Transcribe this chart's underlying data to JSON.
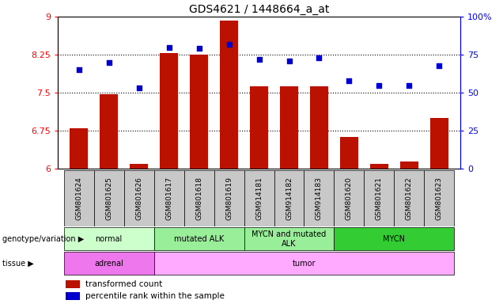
{
  "title": "GDS4621 / 1448664_a_at",
  "samples": [
    "GSM801624",
    "GSM801625",
    "GSM801626",
    "GSM801617",
    "GSM801618",
    "GSM801619",
    "GSM914181",
    "GSM914182",
    "GSM914183",
    "GSM801620",
    "GSM801621",
    "GSM801622",
    "GSM801623"
  ],
  "bar_values": [
    6.8,
    7.47,
    6.1,
    8.28,
    8.25,
    8.93,
    7.63,
    7.62,
    7.63,
    6.62,
    6.1,
    6.15,
    7.0
  ],
  "dot_values": [
    65,
    70,
    53,
    80,
    79,
    82,
    72,
    71,
    73,
    58,
    55,
    55,
    68
  ],
  "bar_color": "#bb1100",
  "dot_color": "#0000cc",
  "ylim_left": [
    6,
    9
  ],
  "ylim_right": [
    0,
    100
  ],
  "yticks_left": [
    6,
    6.75,
    7.5,
    8.25,
    9
  ],
  "ytick_labels_left": [
    "6",
    "6.75",
    "7.5",
    "8.25",
    "9"
  ],
  "yticks_right": [
    0,
    25,
    50,
    75,
    100
  ],
  "ytick_labels_right": [
    "0",
    "25",
    "50",
    "75",
    "100%"
  ],
  "hlines": [
    6.75,
    7.5,
    8.25
  ],
  "genotype_groups": [
    {
      "label": "normal",
      "start": 0,
      "end": 3,
      "color": "#ccffcc"
    },
    {
      "label": "mutated ALK",
      "start": 3,
      "end": 6,
      "color": "#99ee99"
    },
    {
      "label": "MYCN and mutated\nALK",
      "start": 6,
      "end": 9,
      "color": "#99ee99"
    },
    {
      "label": "MYCN",
      "start": 9,
      "end": 13,
      "color": "#33cc33"
    }
  ],
  "tissue_groups": [
    {
      "label": "adrenal",
      "start": 0,
      "end": 3,
      "color": "#ee77ee"
    },
    {
      "label": "tumor",
      "start": 3,
      "end": 13,
      "color": "#ffaaff"
    }
  ],
  "legend_items": [
    {
      "label": "transformed count",
      "color": "#bb1100"
    },
    {
      "label": "percentile rank within the sample",
      "color": "#0000cc"
    }
  ],
  "genotype_label": "genotype/variation",
  "tissue_label": "tissue",
  "xtick_bg": "#c8c8c8"
}
